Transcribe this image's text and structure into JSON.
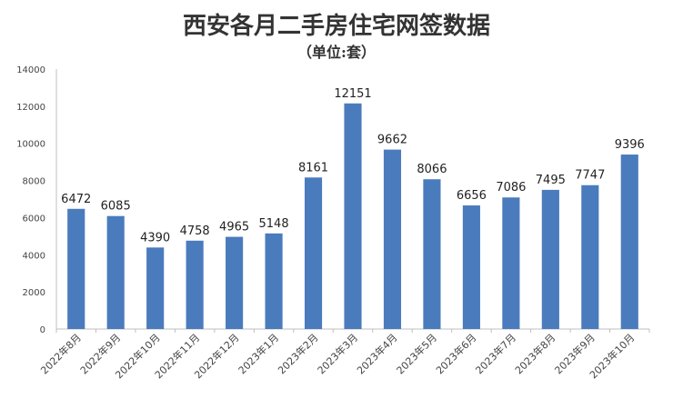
{
  "chart_data": {
    "type": "bar",
    "title": "西安各月二手房住宅网签数据",
    "subtitle": "（单位:套）",
    "xlabel": "",
    "ylabel": "",
    "ylim": [
      0,
      14000
    ],
    "yticks": [
      0,
      2000,
      4000,
      6000,
      8000,
      10000,
      12000,
      14000
    ],
    "grid": false,
    "legend": "none",
    "bar_color": "#4a7bbd",
    "categories": [
      "2022年8月",
      "2022年9月",
      "2022年10月",
      "2022年11月",
      "2022年12月",
      "2023年1月",
      "2023年2月",
      "2023年3月",
      "2023年4月",
      "2023年5月",
      "2023年6月",
      "2023年7月",
      "2023年8月",
      "2023年9月",
      "2023年10月"
    ],
    "values": [
      6472,
      6085,
      4390,
      4758,
      4965,
      5148,
      8161,
      12151,
      9662,
      8066,
      6656,
      7086,
      7495,
      7747,
      9396
    ]
  }
}
